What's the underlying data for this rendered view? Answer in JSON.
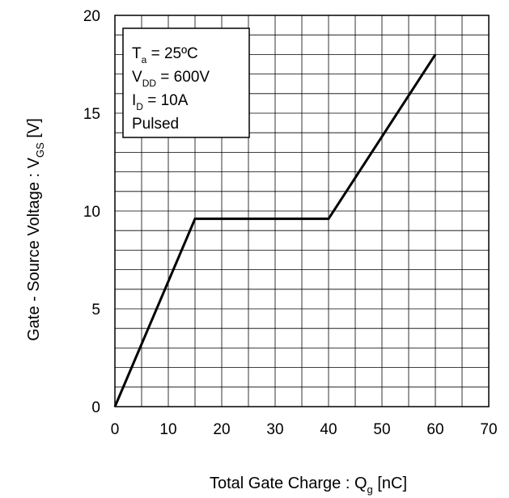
{
  "chart_data": {
    "type": "line",
    "title": "",
    "xlabel": {
      "main": "Total Gate Charge : Q",
      "sub": "g",
      "unit": " [nC]"
    },
    "ylabel": {
      "main": "Gate - Source Voltage : V",
      "sub": "GS",
      "unit": " [V]"
    },
    "xlim": [
      0,
      70
    ],
    "ylim": [
      0,
      20
    ],
    "x_ticks": [
      0,
      10,
      20,
      30,
      40,
      50,
      60,
      70
    ],
    "y_ticks": [
      0,
      5,
      10,
      15,
      20
    ],
    "grid": true,
    "x_minor_divisions": 2,
    "y_minor_divisions": 5,
    "series": [
      {
        "x": [
          0,
          15,
          40,
          60
        ],
        "y": [
          0,
          9.6,
          9.6,
          18
        ]
      }
    ],
    "conditions_box": {
      "position": "top-left",
      "lines": [
        {
          "main": "T",
          "sub": "a",
          "rest": " = 25ºC"
        },
        {
          "main": "V",
          "sub": "DD",
          "rest": " = 600V"
        },
        {
          "main": "I",
          "sub": "D",
          "rest": " = 10A"
        },
        {
          "main": "Pulsed",
          "sub": "",
          "rest": ""
        }
      ]
    },
    "colors": {
      "line": "#000000",
      "grid": "#000000",
      "axis": "#000000",
      "background": "#ffffff"
    }
  }
}
